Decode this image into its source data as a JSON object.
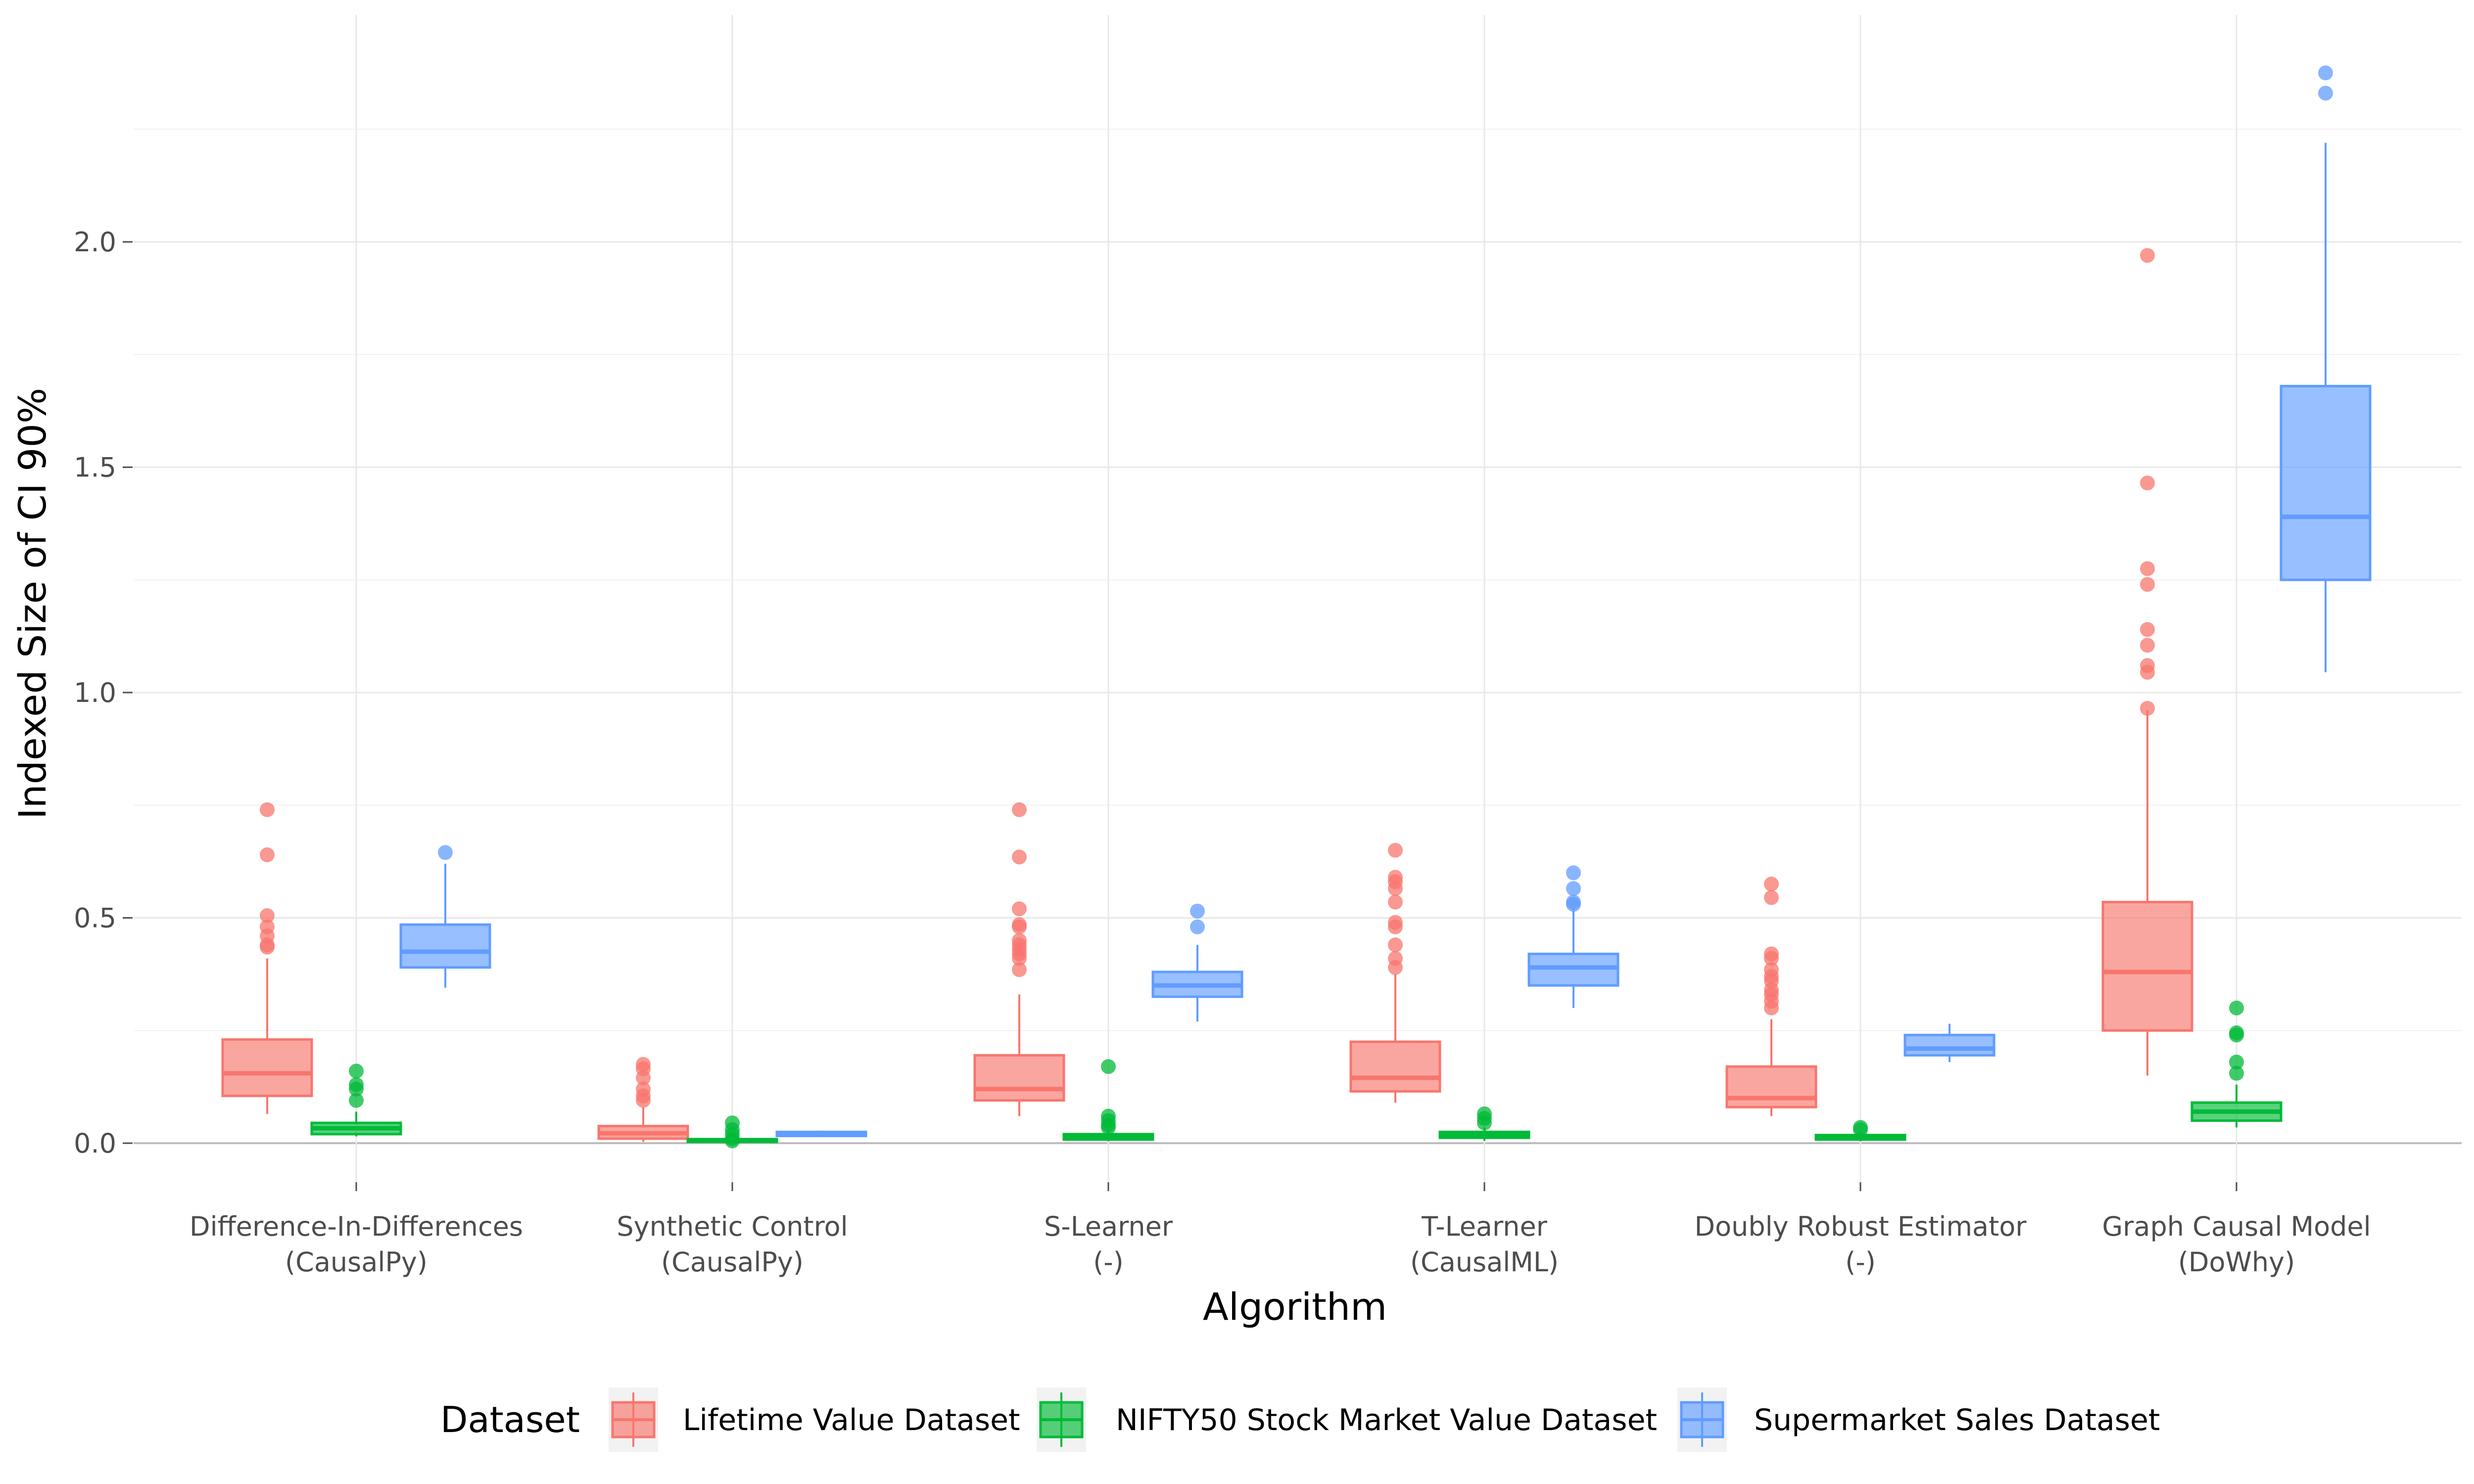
{
  "chart_data": {
    "type": "boxplot",
    "xlabel": "Algorithm",
    "ylabel": "Indexed Size of CI 90%",
    "ylim": [
      -0.1,
      2.5
    ],
    "yticks": [
      0.0,
      0.5,
      1.0,
      1.5,
      2.0
    ],
    "ytick_labels": [
      "0.0",
      "0.5",
      "1.0",
      "1.5",
      "2.0"
    ],
    "grid": true,
    "legend_position": "bottom",
    "legend_title": "Dataset",
    "categories": [
      {
        "line1": "Difference-In-Differences",
        "line2": "(CausalPy)"
      },
      {
        "line1": "Synthetic Control",
        "line2": "(CausalPy)"
      },
      {
        "line1": "S-Learner",
        "line2": "(-)"
      },
      {
        "line1": "T-Learner",
        "line2": "(CausalML)"
      },
      {
        "line1": "Doubly Robust Estimator",
        "line2": "(-)"
      },
      {
        "line1": "Graph Causal Model",
        "line2": "(DoWhy)"
      }
    ],
    "series": [
      {
        "name": "Lifetime Value Dataset",
        "color": "#F8766D",
        "boxes": [
          {
            "min": 0.065,
            "q1": 0.105,
            "median": 0.155,
            "q3": 0.23,
            "max": 0.41,
            "outliers": [
              0.74,
              0.64,
              0.505,
              0.48,
              0.46,
              0.44,
              0.435
            ]
          },
          {
            "min": 0.003,
            "q1": 0.01,
            "median": 0.022,
            "q3": 0.038,
            "max": 0.08,
            "outliers": [
              0.175,
              0.165,
              0.145,
              0.12,
              0.105,
              0.095
            ]
          },
          {
            "min": 0.06,
            "q1": 0.095,
            "median": 0.12,
            "q3": 0.195,
            "max": 0.33,
            "outliers": [
              0.74,
              0.635,
              0.52,
              0.485,
              0.48,
              0.45,
              0.44,
              0.43,
              0.42,
              0.41,
              0.385
            ]
          },
          {
            "min": 0.09,
            "q1": 0.115,
            "median": 0.145,
            "q3": 0.225,
            "max": 0.375,
            "outliers": [
              0.65,
              0.59,
              0.58,
              0.565,
              0.535,
              0.49,
              0.48,
              0.44,
              0.41,
              0.39
            ]
          },
          {
            "min": 0.06,
            "q1": 0.08,
            "median": 0.1,
            "q3": 0.17,
            "max": 0.275,
            "outliers": [
              0.575,
              0.545,
              0.42,
              0.41,
              0.385,
              0.37,
              0.36,
              0.34,
              0.33,
              0.315,
              0.3
            ]
          },
          {
            "min": 0.15,
            "q1": 0.25,
            "median": 0.38,
            "q3": 0.535,
            "max": 0.96,
            "outliers": [
              1.97,
              1.465,
              1.275,
              1.24,
              1.14,
              1.105,
              1.06,
              1.045,
              0.965
            ]
          }
        ]
      },
      {
        "name": "NIFTY50 Stock Market Value Dataset",
        "color": "#00BA38",
        "boxes": [
          {
            "min": 0.015,
            "q1": 0.02,
            "median": 0.033,
            "q3": 0.045,
            "max": 0.07,
            "outliers": [
              0.16,
              0.13,
              0.12,
              0.095
            ]
          },
          {
            "min": 0.001,
            "q1": 0.003,
            "median": 0.006,
            "q3": 0.009,
            "max": 0.014,
            "outliers": [
              0.045,
              0.03,
              0.02,
              0.01,
              0.005
            ]
          },
          {
            "min": 0.004,
            "q1": 0.008,
            "median": 0.013,
            "q3": 0.02,
            "max": 0.03,
            "outliers": [
              0.17,
              0.06,
              0.05,
              0.04,
              0.035
            ]
          },
          {
            "min": 0.005,
            "q1": 0.012,
            "median": 0.018,
            "q3": 0.025,
            "max": 0.035,
            "outliers": [
              0.065,
              0.055,
              0.045
            ]
          },
          {
            "min": 0.004,
            "q1": 0.008,
            "median": 0.012,
            "q3": 0.018,
            "max": 0.025,
            "outliers": [
              0.035,
              0.03
            ]
          },
          {
            "min": 0.035,
            "q1": 0.05,
            "median": 0.07,
            "q3": 0.09,
            "max": 0.13,
            "outliers": [
              0.3,
              0.245,
              0.24,
              0.18,
              0.155
            ]
          }
        ]
      },
      {
        "name": "Supermarket Sales Dataset",
        "color": "#619CFF",
        "boxes": [
          {
            "min": 0.345,
            "q1": 0.39,
            "median": 0.425,
            "q3": 0.485,
            "max": 0.62,
            "outliers": [
              0.645
            ]
          },
          {
            "min": 0.015,
            "q1": 0.016,
            "median": 0.02,
            "q3": 0.025,
            "max": 0.028,
            "outliers": []
          },
          {
            "min": 0.27,
            "q1": 0.325,
            "median": 0.35,
            "q3": 0.38,
            "max": 0.44,
            "outliers": [
              0.515,
              0.48
            ]
          },
          {
            "min": 0.3,
            "q1": 0.35,
            "median": 0.39,
            "q3": 0.42,
            "max": 0.52,
            "outliers": [
              0.6,
              0.565,
              0.535,
              0.53
            ]
          },
          {
            "min": 0.18,
            "q1": 0.195,
            "median": 0.21,
            "q3": 0.24,
            "max": 0.265,
            "outliers": []
          },
          {
            "min": 1.045,
            "q1": 1.25,
            "median": 1.39,
            "q3": 1.68,
            "max": 2.22,
            "outliers": [
              2.375,
              2.33
            ]
          }
        ]
      }
    ]
  }
}
